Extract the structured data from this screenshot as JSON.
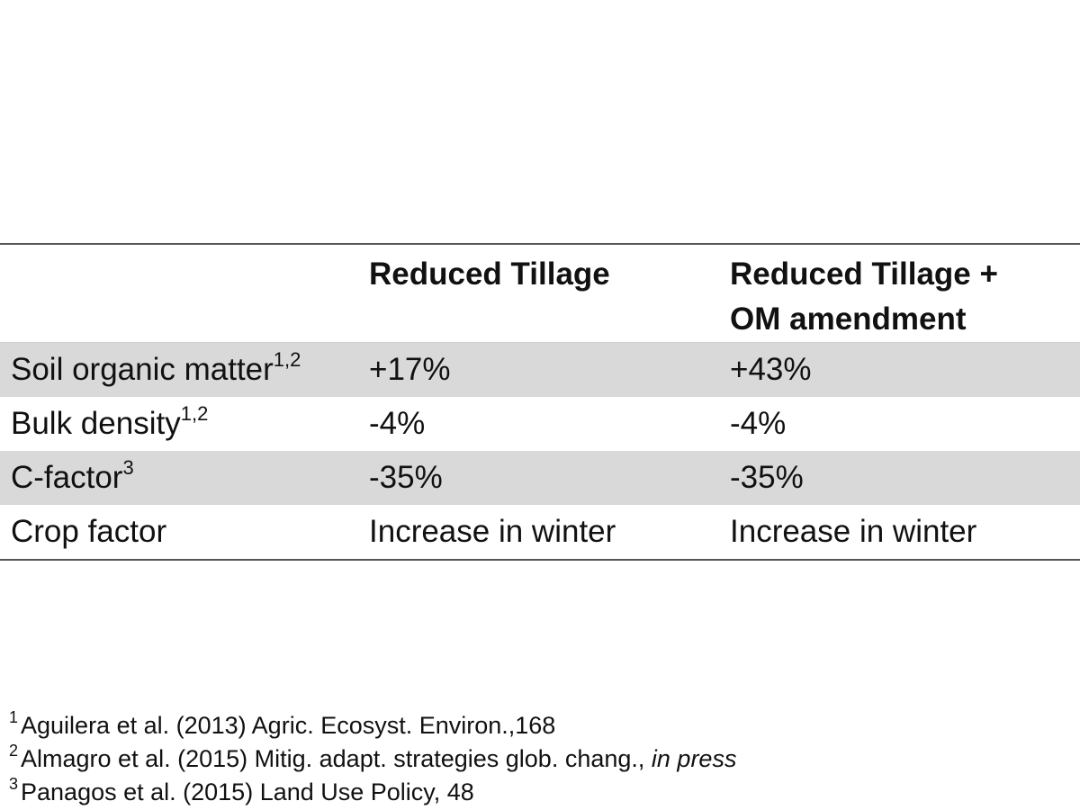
{
  "table": {
    "headers": {
      "col1": "",
      "col2": "Reduced Tillage",
      "col3_line1": "Reduced Tillage +",
      "col3_line2": "OM amendment"
    },
    "rows": [
      {
        "label": "Soil organic matter",
        "note": "1,2",
        "reduced_tillage": "+17%",
        "reduced_tillage_om": "+43%"
      },
      {
        "label": "Bulk density",
        "note": "1,2",
        "reduced_tillage": "-4%",
        "reduced_tillage_om": "-4%"
      },
      {
        "label": "C-factor",
        "note": "3",
        "reduced_tillage": "-35%",
        "reduced_tillage_om": "-35%"
      },
      {
        "label": "Crop factor",
        "note": "",
        "reduced_tillage": "Increase in winter",
        "reduced_tillage_om": "Increase in winter"
      }
    ],
    "shade_color": "#d9d9d9"
  },
  "references": [
    {
      "num": "1",
      "text": "Aguilera et al. (2013) Agric. Ecosyst. Environ.,168",
      "italic": ""
    },
    {
      "num": "2",
      "text": "Almagro et al. (2015) Mitig. adapt. strategies glob. chang., ",
      "italic": "in press"
    },
    {
      "num": "3",
      "text": "Panagos et al. (2015) Land Use Policy, 48",
      "italic": ""
    }
  ]
}
